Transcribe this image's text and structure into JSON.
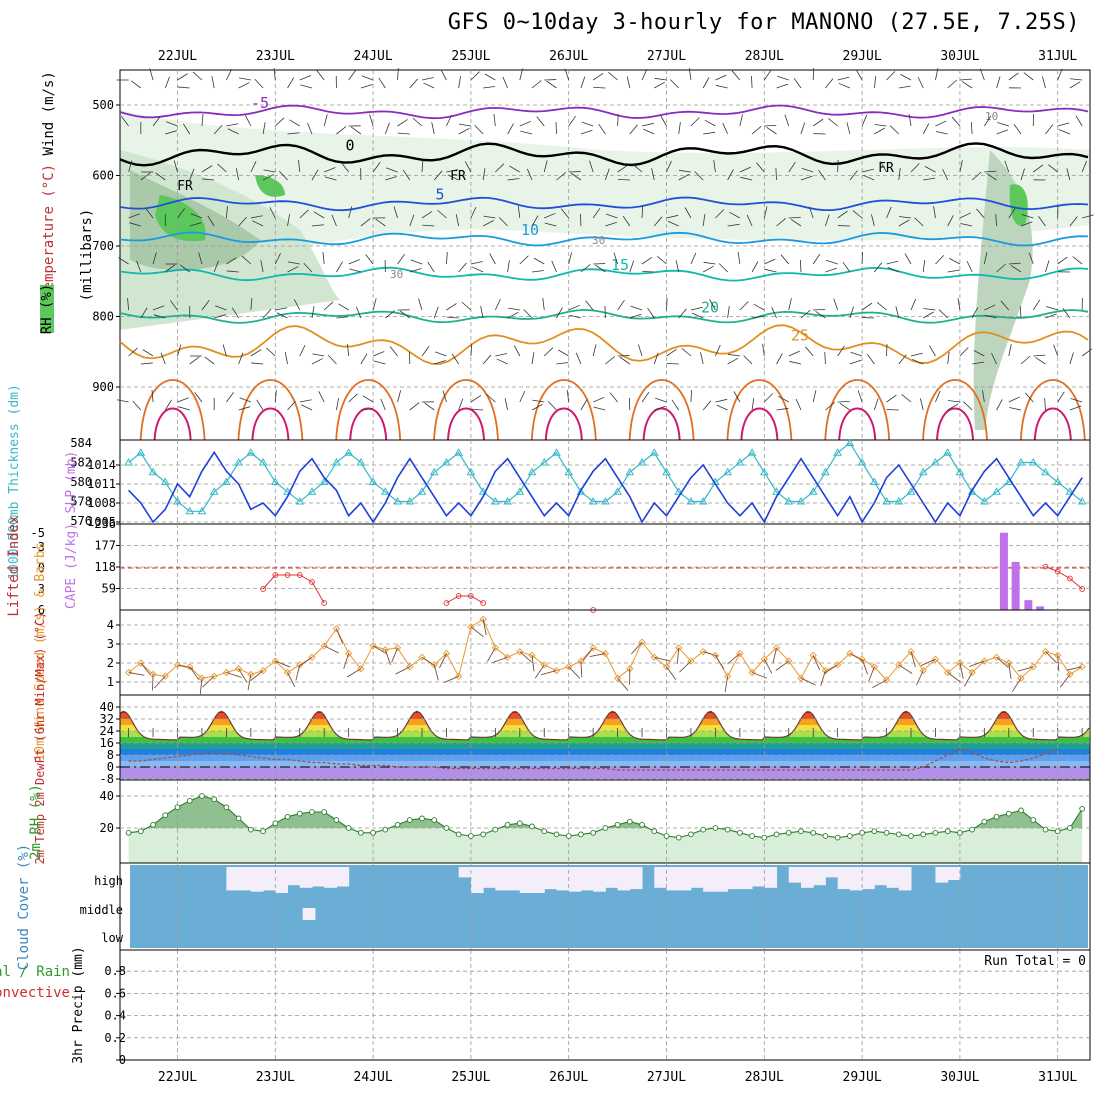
{
  "title": "GFS 0~10day 3-hourly for MANONO (27.5E, 7.25S)",
  "colors": {
    "slp": "#1f3fd8",
    "thickness": "#38b8c8",
    "cape": "#c070e8",
    "lifted": "#e03030",
    "wind": "#e89830",
    "barb": "#7a4e3a",
    "rh": "#55aa55",
    "rhFill": "#d8eed8",
    "cloudSky": "#6aaed6",
    "cloudHigh": "#f4eefa",
    "temp": "#6b3a3a"
  },
  "chart_data": [
    {
      "type": "contour",
      "name": "upper-air",
      "axis_label_y": "(millibars)",
      "side_labels": [
        "Wind (m/s)",
        "Temperature (°C)",
        "RH (%)"
      ],
      "y_ticks": [
        500,
        600,
        700,
        800,
        900
      ],
      "temperature_levels": [
        {
          "label": "-5",
          "mb": 510
        },
        {
          "label": "0",
          "mb": 570
        },
        {
          "label": "5",
          "mb": 640
        },
        {
          "label": "10",
          "mb": 690
        },
        {
          "label": "15",
          "mb": 740
        },
        {
          "label": "20",
          "mb": 800
        },
        {
          "label": "25",
          "mb": 840
        }
      ],
      "freezing_label": "FR",
      "rh_labels": [
        "10",
        "30"
      ]
    },
    {
      "type": "line",
      "name": "slp-thickness",
      "left_label": "1000-500mb Thickness (dm)",
      "right_label": "SLP (mb)",
      "y_ticks_left": [
        576,
        578,
        580,
        582,
        584
      ],
      "y_ticks_right": [
        "1005",
        "1008",
        "1011",
        "1014"
      ],
      "slp_range": [
        1005,
        1017
      ],
      "thickness_range": [
        576,
        584
      ],
      "slp": [
        1010,
        1008,
        1005,
        1007,
        1011,
        1009,
        1013,
        1016,
        1013,
        1011,
        1007,
        1008,
        1006,
        1009,
        1013,
        1015,
        1012,
        1010,
        1006,
        1008,
        1005,
        1008,
        1012,
        1015,
        1012,
        1009,
        1006,
        1008,
        1006,
        1009,
        1013,
        1015,
        1012,
        1009,
        1006,
        1008,
        1006,
        1010,
        1013,
        1015,
        1012,
        1009,
        1005,
        1008,
        1006,
        1009,
        1012,
        1014,
        1011,
        1008,
        1006,
        1008,
        1005,
        1009,
        1012,
        1015,
        1012,
        1009,
        1006,
        1009,
        1005,
        1008,
        1012,
        1014,
        1011,
        1008,
        1005,
        1008,
        1006,
        1010,
        1013,
        1015,
        1012,
        1009,
        1006,
        1008,
        1006,
        1009,
        1012,
        1014
      ],
      "thickness": [
        582,
        583,
        581,
        580,
        578,
        577,
        577,
        579,
        580,
        582,
        583,
        582,
        580,
        579,
        578,
        579,
        580,
        582,
        583,
        582,
        580,
        579,
        578,
        578,
        579,
        581,
        582,
        583,
        581,
        579,
        578,
        578,
        579,
        581,
        582,
        583,
        581,
        579,
        578,
        578,
        579,
        581,
        582,
        583,
        581,
        579,
        578,
        578,
        580,
        581,
        582,
        583,
        581,
        579,
        578,
        578,
        579,
        581,
        583,
        584,
        582,
        580,
        578,
        578,
        579,
        581,
        582,
        583,
        581,
        579,
        578,
        579,
        580,
        582,
        582,
        581,
        580,
        579,
        578,
        578
      ]
    },
    {
      "type": "bar",
      "name": "cape-lifted-index",
      "left_label": "Lifted Index",
      "right_label": "CAPE (J/kg)",
      "y_ticks_left": [
        "-5",
        "-3",
        "0",
        "3",
        "6"
      ],
      "y_ticks_right": [
        "236",
        "177",
        "118",
        "59"
      ],
      "lifted_index": [
        null,
        null,
        null,
        null,
        null,
        null,
        null,
        null,
        null,
        null,
        null,
        3,
        1,
        1,
        1,
        2,
        5,
        null,
        null,
        null,
        null,
        null,
        null,
        null,
        null,
        null,
        5,
        4,
        4,
        5,
        null,
        null,
        null,
        null,
        null,
        null,
        null,
        null,
        6,
        null,
        null,
        null,
        null,
        null,
        null,
        null,
        null,
        null,
        null,
        null,
        null,
        null,
        null,
        null,
        null,
        null,
        null,
        null,
        null,
        null,
        null,
        null,
        null,
        null,
        null,
        null,
        null,
        null,
        null,
        null,
        null,
        null,
        null,
        null,
        null,
        -0.2,
        0.5,
        1.5,
        3,
        4.5,
        6,
        null,
        null,
        null,
        null,
        null,
        null,
        null,
        5,
        3
      ],
      "cape_bars": [
        {
          "day": 8.45,
          "cape": 212
        },
        {
          "day": 8.57,
          "cape": 132
        },
        {
          "day": 8.7,
          "cape": 27
        },
        {
          "day": 8.82,
          "cape": 10
        }
      ]
    },
    {
      "type": "line",
      "name": "wind-10m",
      "left_label": "10m Wind Speed (m/s) & Barbs",
      "y_ticks": [
        1,
        2,
        3,
        4
      ],
      "speed": [
        1.5,
        2.0,
        1.4,
        1.3,
        1.9,
        1.8,
        1.2,
        1.3,
        1.5,
        1.7,
        1.4,
        1.6,
        2.1,
        1.5,
        1.9,
        2.3,
        2.9,
        3.8,
        2.5,
        1.7,
        2.9,
        2.7,
        2.8,
        1.8,
        2.3,
        1.9,
        2.5,
        1.3,
        3.9,
        4.3,
        2.8,
        2.3,
        2.6,
        2.4,
        1.9,
        1.6,
        1.8,
        2.1,
        2.8,
        2.5,
        1.2,
        1.7,
        3.1,
        2.3,
        1.8,
        2.8,
        2.1,
        2.6,
        2.4,
        1.3,
        2.5,
        1.5,
        2.2,
        2.8,
        2.1,
        1.2,
        2.4,
        1.6,
        1.9,
        2.5,
        2.2,
        1.8,
        1.1,
        1.9,
        2.6,
        1.6,
        2.2,
        1.5,
        2.0,
        1.5,
        2.1,
        2.3,
        2.0,
        1.2,
        1.8,
        2.6,
        2.4,
        1.4,
        1.8,
        2.5
      ]
    },
    {
      "type": "area",
      "name": "temperature-2m",
      "left_label": "2m Temp 2m DewPt (6hr Min/Max) (°C)",
      "y_ticks": [
        -8,
        0,
        8,
        16,
        24,
        32,
        40
      ],
      "temp_min": 18,
      "temp_max": 38,
      "dew_point": [
        4,
        4,
        5,
        6,
        7,
        8,
        9,
        10,
        9,
        8,
        7,
        6,
        5,
        5,
        4,
        3,
        3,
        2,
        2,
        1,
        1,
        1,
        0,
        0,
        0,
        0,
        -1,
        -1,
        -1,
        -1,
        -1,
        -1,
        -1,
        -1,
        -1,
        -1,
        -1,
        -1,
        -1,
        -1,
        -2,
        -2,
        -2,
        -2,
        -2,
        -2,
        -2,
        -2,
        -2,
        -2,
        -2,
        -2,
        -2,
        -2,
        -2,
        -2,
        -2,
        -2,
        -2,
        -2,
        -2,
        -2,
        -2,
        -2,
        -2,
        0,
        4,
        8,
        12,
        10,
        6,
        4,
        3,
        4,
        6,
        9,
        12
      ]
    },
    {
      "type": "area",
      "name": "rh-2m",
      "left_label": "2m RH (%)",
      "y_ticks": [
        20,
        40
      ],
      "rh": [
        17,
        18,
        22,
        28,
        33,
        37,
        40,
        38,
        33,
        26,
        19,
        18,
        23,
        27,
        29,
        30,
        30,
        25,
        20,
        17,
        17,
        19,
        22,
        25,
        26,
        25,
        20,
        16,
        15,
        16,
        19,
        22,
        23,
        21,
        18,
        16,
        15,
        16,
        17,
        20,
        22,
        24,
        22,
        18,
        15,
        14,
        16,
        19,
        20,
        19,
        17,
        15,
        14,
        16,
        17,
        18,
        17,
        15,
        14,
        15,
        17,
        18,
        17,
        16,
        15,
        16,
        17,
        18,
        17,
        19,
        24,
        27,
        29,
        31,
        25,
        19,
        18,
        20,
        32,
        40,
        38
      ]
    },
    {
      "type": "area",
      "name": "cloud-cover",
      "left_label": "Cloud Cover (%)",
      "y_ticks": [
        "high",
        "middle",
        "low"
      ],
      "high_cloud_clear": [
        0,
        0,
        0,
        0,
        0,
        0,
        0,
        0,
        0.9,
        0.9,
        0.95,
        0.9,
        1,
        0.7,
        0.8,
        0.75,
        0.8,
        0.75,
        0,
        0,
        0,
        0,
        0,
        0,
        0,
        0,
        0,
        0.4,
        1,
        0.8,
        0.9,
        0.9,
        1,
        1,
        0.85,
        0.9,
        0.95,
        0.9,
        0.95,
        0.8,
        0.9,
        0.85,
        0,
        0.8,
        0.9,
        0.9,
        0.8,
        0.95,
        0.95,
        0.85,
        0.85,
        0.75,
        0.8,
        0,
        0.6,
        0.8,
        0.7,
        0.4,
        0.85,
        0.9,
        0.85,
        0.7,
        0.8,
        0.9,
        0,
        0,
        0.6,
        0.5,
        0,
        0,
        0,
        0,
        0,
        0,
        0,
        0,
        0,
        0,
        0,
        0
      ],
      "middle_cloud_clear": [
        {
          "day": 1.78,
          "width": 0.13
        }
      ]
    },
    {
      "type": "bar",
      "name": "precipitation",
      "left_label": "3hr Precip (mm)",
      "side_labels": [
        "Total / Rain",
        "Convective"
      ],
      "y_ticks": [
        "0",
        "0.2",
        "0.4",
        "0.6",
        "0.8"
      ],
      "run_total": "Run Total = 0"
    },
    {
      "type": "axis",
      "name": "time-axis",
      "dates": [
        "22JUL",
        "23JUL",
        "24JUL",
        "25JUL",
        "26JUL",
        "27JUL",
        "28JUL",
        "29JUL",
        "30JUL",
        "31JUL"
      ]
    }
  ]
}
